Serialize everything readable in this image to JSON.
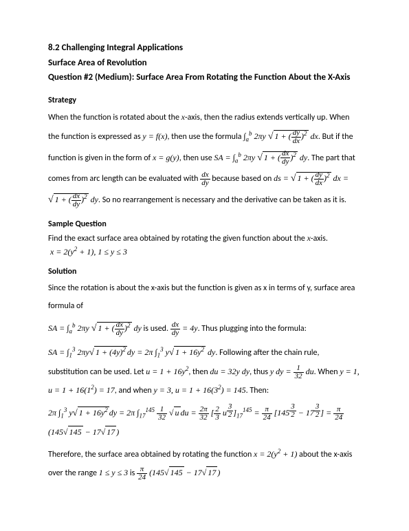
{
  "heading": "8.2 Challenging Integral Applications",
  "subheading": "Surface Area of Revolution",
  "question_title": "Question #2 (Medium): Surface Area From Rotating the Function About the X-Axis",
  "strategy_label": "Strategy",
  "strategy_p1a": "When the function is rotated about the ",
  "strategy_p1b": "-axis, then the radius extends vertically up. When the function is expressed as ",
  "strategy_p1c": ", then use the formula ",
  "strategy_p1d": ". But if the function is given in the form of ",
  "strategy_p1e": ", then use ",
  "strategy_p1f": ". The part that comes from arc length can be evaluated with ",
  "strategy_p1g": " because based on ",
  "strategy_p1h": ". So no rearrangement is necessary and the derivative can be taken as it is.",
  "sample_label": "Sample Question",
  "sample_text": "Find the exact surface area obtained by rotating the given function about the ",
  "sample_text2": "-axis.",
  "sample_eq": "x = 2(y² + 1), 1 ≤ y ≤ 3",
  "solution_label": "Solution",
  "sol_p1": "Since the rotation is about the x-axis but the function is given as x in terms of y, surface area formula of",
  "sol_p2a": " is used. ",
  "sol_p2b": ". Thus plugging into the formula:",
  "sol_p3a": ". Following after the chain rule, substitution can be used. Let ",
  "sol_p3b": ", then ",
  "sol_p3c": ", thus ",
  "sol_p3d": ". When ",
  "sol_p3e": ", and when ",
  "sol_p3f": ". Then:",
  "sol_p4a": "Therefore, the surface area obtained by rotating the function ",
  "sol_p4b": " about the x-axis over the range ",
  "sol_p4c": " is "
}
